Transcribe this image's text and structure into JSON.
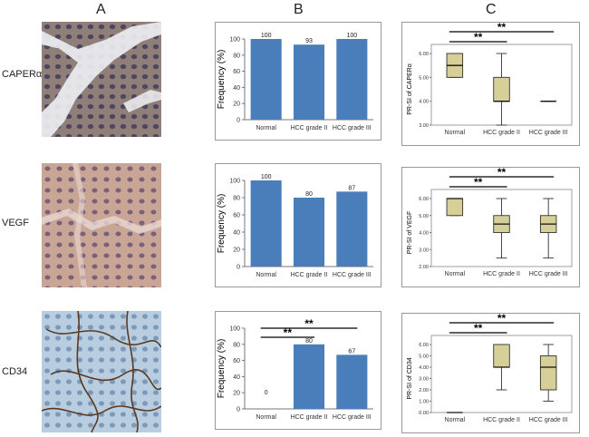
{
  "column_labels": [
    "A",
    "B",
    "C"
  ],
  "row_labels": [
    "CAPERα",
    "VEGF",
    "CD34"
  ],
  "chart_data": [
    {
      "type": "bar",
      "panel": "B",
      "row": "CAPERα",
      "categories": [
        "Normal",
        "HCC grade II",
        "HCC grade III"
      ],
      "values": [
        100,
        93,
        100
      ],
      "value_labels": [
        "100",
        "93",
        "100"
      ],
      "ylabel": "Frequency (%)",
      "ylim": [
        0,
        100
      ],
      "yticks": [
        "0",
        "20",
        "40",
        "60",
        "80",
        "100"
      ],
      "significance": [],
      "color": "#4a7ebb"
    },
    {
      "type": "bar",
      "panel": "B",
      "row": "VEGF",
      "categories": [
        "Normal",
        "HCC grade II",
        "HCC grade III"
      ],
      "values": [
        100,
        80,
        87
      ],
      "value_labels": [
        "100",
        "80",
        "87"
      ],
      "ylabel": "Frequency (%)",
      "ylim": [
        0,
        100
      ],
      "yticks": [
        "0",
        "20",
        "40",
        "60",
        "80",
        "100"
      ],
      "significance": [],
      "color": "#4a7ebb"
    },
    {
      "type": "bar",
      "panel": "B",
      "row": "CD34",
      "categories": [
        "Normal",
        "HCC grade II",
        "HCC grade III"
      ],
      "values": [
        0,
        80,
        67
      ],
      "value_labels": [
        "0",
        "80",
        "67"
      ],
      "ylabel": "Frequency (%)",
      "ylim": [
        0,
        100
      ],
      "yticks": [
        "0",
        "20",
        "40",
        "60",
        "80",
        "100"
      ],
      "significance": [
        {
          "from": 0,
          "to": 1,
          "label": "**"
        },
        {
          "from": 0,
          "to": 2,
          "label": "**"
        }
      ],
      "color": "#4a7ebb"
    },
    {
      "type": "box",
      "panel": "C",
      "row": "CAPERα",
      "categories": [
        "Normal",
        "HCC grade II",
        "HCC grade III"
      ],
      "ylabel": "PR-SI of CAPERα",
      "ylim": [
        3,
        6
      ],
      "yticks": [
        "3.00",
        "4.00",
        "5.00",
        "6.00"
      ],
      "boxes": [
        {
          "min": 5,
          "q1": 5,
          "median": 5.5,
          "q3": 6,
          "max": 6
        },
        {
          "min": 3,
          "q1": 4,
          "median": 4,
          "q3": 5,
          "max": 6
        },
        {
          "min": 4,
          "q1": 4,
          "median": 4,
          "q3": 4,
          "max": 4
        }
      ],
      "significance": [
        {
          "from": 0,
          "to": 1,
          "label": "**"
        },
        {
          "from": 0,
          "to": 2,
          "label": "**"
        }
      ],
      "color": "#d6cf97"
    },
    {
      "type": "box",
      "panel": "C",
      "row": "VEGF",
      "categories": [
        "Normal",
        "HCC grade II",
        "HCC grade III"
      ],
      "ylabel": "PR-SI of VEGF",
      "ylim": [
        2,
        6
      ],
      "yticks": [
        "2.00",
        "3.00",
        "4.00",
        "5.00",
        "6.00"
      ],
      "boxes": [
        {
          "min": 5,
          "q1": 5,
          "median": 6,
          "q3": 6,
          "max": 6
        },
        {
          "min": 2.5,
          "q1": 4,
          "median": 4.5,
          "q3": 5,
          "max": 6
        },
        {
          "min": 2.5,
          "q1": 4,
          "median": 4.5,
          "q3": 5,
          "max": 6
        }
      ],
      "significance": [
        {
          "from": 0,
          "to": 1,
          "label": "**"
        },
        {
          "from": 0,
          "to": 2,
          "label": "**"
        }
      ],
      "color": "#d6cf97"
    },
    {
      "type": "box",
      "panel": "C",
      "row": "CD34",
      "categories": [
        "Normal",
        "HCC grade II",
        "HCC grade III"
      ],
      "ylabel": "PR-SI of CD34",
      "ylim": [
        0,
        6
      ],
      "yticks": [
        "0.00",
        "1.00",
        "2.00",
        "3.00",
        "4.00",
        "5.00",
        "6.00"
      ],
      "boxes": [
        {
          "min": 0,
          "q1": 0,
          "median": 0,
          "q3": 0,
          "max": 0
        },
        {
          "min": 2,
          "q1": 4,
          "median": 4,
          "q3": 6,
          "max": 6
        },
        {
          "min": 1,
          "q1": 2,
          "median": 4,
          "q3": 5,
          "max": 6
        }
      ],
      "significance": [
        {
          "from": 0,
          "to": 1,
          "label": "**"
        },
        {
          "from": 0,
          "to": 2,
          "label": "**"
        }
      ],
      "color": "#d6cf97"
    }
  ]
}
